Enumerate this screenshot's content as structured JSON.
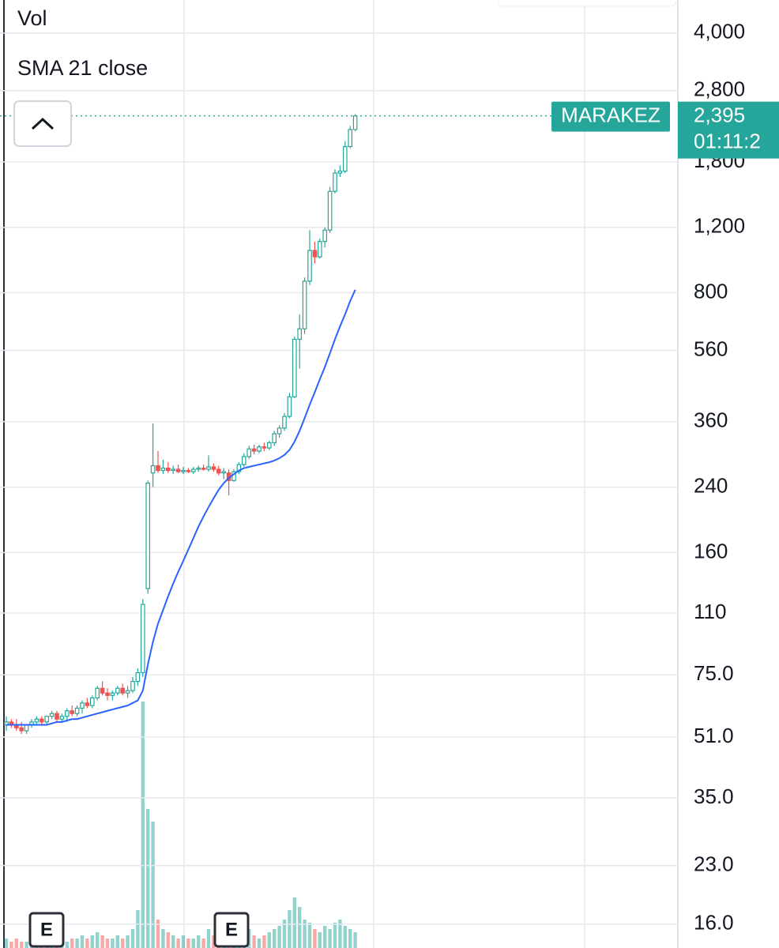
{
  "chart_data": {
    "type": "candlestick",
    "log_scale": true,
    "grid": true,
    "ylim": [
      13.8,
      4910
    ],
    "yticks": [
      {
        "value": 4000,
        "label": "4,000"
      },
      {
        "value": 2800,
        "label": "2,800"
      },
      {
        "value": 1800,
        "label": "1,800"
      },
      {
        "value": 1200,
        "label": "1,200"
      },
      800,
      560,
      360,
      240,
      160,
      110,
      {
        "value": 75,
        "label": "75.0"
      },
      {
        "value": 51,
        "label": "51.0"
      },
      {
        "value": 35,
        "label": "35.0"
      },
      {
        "value": 23,
        "label": "23.0"
      },
      {
        "value": 16,
        "label": "16.0"
      }
    ],
    "categories": [
      null,
      null,
      null,
      null,
      null,
      null,
      null,
      null,
      null,
      null,
      null,
      null,
      null,
      null,
      null,
      null,
      null,
      null,
      null,
      null,
      null,
      null,
      null,
      null,
      null,
      null,
      null,
      null,
      null,
      null,
      null,
      null,
      null,
      null,
      null,
      null,
      null,
      null,
      null,
      null,
      null,
      null,
      null,
      null,
      null,
      null,
      null,
      null,
      null,
      null,
      null,
      null,
      null,
      null,
      null,
      null,
      null,
      null,
      null,
      null,
      null,
      null,
      null,
      null,
      null,
      null,
      null,
      null,
      null,
      null
    ],
    "up_color": "#26a69a",
    "down_color": "#ef5350",
    "series": [
      {
        "name": "MARAKEZ",
        "open": [
          55,
          56,
          55,
          54,
          53,
          55,
          56,
          57,
          56,
          58,
          59,
          57,
          58,
          60,
          59,
          61,
          63,
          62,
          65,
          69,
          67,
          66,
          67,
          69,
          67,
          68,
          72,
          76,
          128,
          262,
          274,
          266,
          270,
          266,
          268,
          264,
          266,
          264,
          268,
          270,
          268,
          272,
          268,
          262,
          262,
          250,
          264,
          276,
          290,
          304,
          300,
          308,
          306,
          316,
          334,
          346,
          372,
          420,
          600,
          640,
          860,
          1040,
          1000,
          1100,
          1180,
          1500,
          1680,
          1700,
          1980,
          2200
        ],
        "high": [
          58,
          57,
          57,
          56,
          55,
          57,
          58,
          58,
          58,
          60,
          60,
          59,
          61,
          62,
          62,
          64,
          65,
          66,
          70,
          72,
          69,
          68,
          70,
          71,
          70,
          74,
          78,
          120,
          250,
          356,
          300,
          284,
          280,
          274,
          276,
          272,
          270,
          272,
          274,
          276,
          292,
          278,
          274,
          270,
          268,
          268,
          280,
          296,
          310,
          312,
          312,
          316,
          320,
          340,
          352,
          380,
          430,
          610,
          700,
          880,
          1180,
          1100,
          1120,
          1200,
          1540,
          1720,
          1760,
          2050,
          2250,
          2420
        ],
        "low": [
          53,
          54,
          53,
          52,
          52,
          54,
          55,
          55,
          55,
          57,
          56,
          56,
          56,
          58,
          58,
          59,
          61,
          61,
          64,
          66,
          64,
          64,
          66,
          66,
          65,
          67,
          70,
          74,
          124,
          240,
          262,
          260,
          262,
          260,
          262,
          260,
          262,
          260,
          264,
          266,
          264,
          264,
          258,
          252,
          228,
          248,
          260,
          272,
          286,
          294,
          296,
          300,
          302,
          310,
          326,
          340,
          368,
          416,
          500,
          620,
          840,
          960,
          990,
          1060,
          1160,
          1480,
          1640,
          1680,
          1960,
          2180
        ],
        "close": [
          56,
          55,
          54,
          53,
          55,
          56,
          57,
          56,
          58,
          59,
          57,
          58,
          60,
          59,
          61,
          63,
          62,
          65,
          69,
          67,
          66,
          67,
          69,
          67,
          68,
          72,
          76,
          116,
          246,
          274,
          266,
          270,
          266,
          268,
          264,
          266,
          264,
          268,
          270,
          268,
          272,
          268,
          262,
          264,
          250,
          264,
          276,
          290,
          304,
          300,
          308,
          306,
          316,
          334,
          346,
          372,
          420,
          600,
          640,
          860,
          1040,
          1000,
          1100,
          1180,
          1500,
          1680,
          1700,
          1980,
          2200,
          2395
        ]
      },
      {
        "name": "Vol",
        "volume_lim": [
          0,
          100
        ],
        "values": [
          3,
          2,
          3,
          2,
          2,
          3,
          2,
          2,
          3,
          3,
          2,
          3,
          2,
          3,
          3,
          4,
          3,
          4,
          5,
          4,
          3,
          3,
          4,
          3,
          4,
          6,
          12,
          78,
          44,
          40,
          9,
          6,
          5,
          4,
          3,
          4,
          3,
          3,
          4,
          3,
          6,
          4,
          3,
          4,
          8,
          5,
          4,
          5,
          6,
          4,
          3,
          4,
          5,
          6,
          7,
          9,
          12,
          16,
          13,
          9,
          8,
          6,
          5,
          7,
          6,
          8,
          9,
          7,
          6,
          5
        ]
      },
      {
        "name": "SMA 21 close",
        "color": "#2962ff",
        "values": [
          55,
          55,
          55,
          55,
          55,
          55,
          55,
          55,
          55,
          55.5,
          56,
          56,
          56.5,
          57,
          57,
          57.5,
          58,
          58.5,
          59,
          59.5,
          60,
          60.5,
          61,
          61.5,
          62,
          63,
          64,
          68,
          80,
          92,
          103,
          112,
          122,
          132,
          142,
          152,
          163,
          175,
          188,
          200,
          212,
          224,
          236,
          246,
          254,
          260,
          266,
          270,
          272,
          274,
          276,
          278,
          280,
          283,
          287,
          293,
          302,
          318,
          340,
          368,
          400,
          432,
          468,
          505,
          550,
          600,
          650,
          700,
          760,
          815
        ]
      }
    ],
    "last_price": {
      "value": 2395,
      "label": "2,395"
    },
    "countdown": "01:11:2",
    "earnings": [
      "E",
      "E"
    ]
  }
}
